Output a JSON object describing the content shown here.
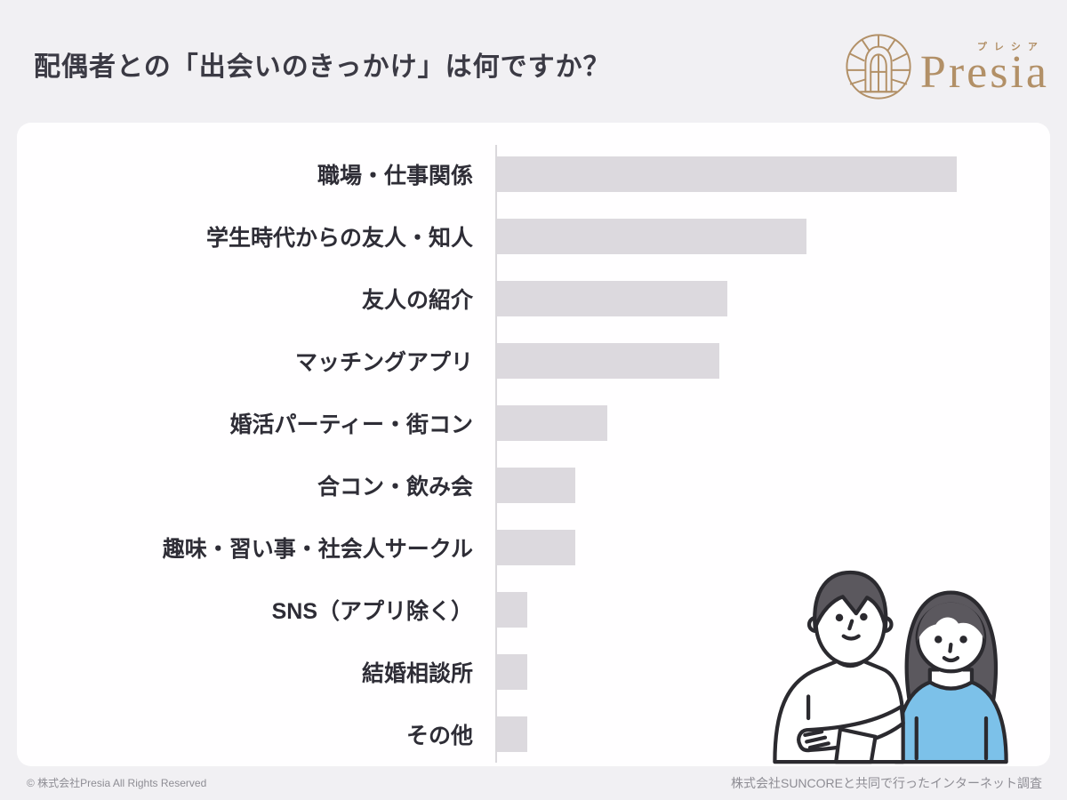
{
  "header": {
    "title": "配偶者との「出会いのきっかけ」は何ですか？",
    "logo": {
      "icon": "arched-window-icon",
      "furigana": "プレシア",
      "wordmark": "Presia"
    }
  },
  "chart_data": {
    "type": "bar",
    "orientation": "horizontal",
    "title": "配偶者との「出会いのきっかけ」は何ですか？",
    "categories": [
      "職場・仕事関係",
      "学生時代からの友人・知人",
      "友人の紹介",
      "マッチングアプリ",
      "婚活パーティー・街コン",
      "合コン・飲み会",
      "趣味・習い事・社会人サークル",
      "SNS（アプリ除く）",
      "結婚相談所",
      "その他"
    ],
    "values": [
      28.9,
      19.5,
      14.5,
      14.0,
      7.0,
      5.0,
      5.0,
      2.0,
      2.0,
      2.0
    ],
    "values_estimated_from_pixels": true,
    "data_labels_shown": false,
    "xlabel": "",
    "ylabel": "",
    "xlim": [
      0,
      32.5
    ],
    "grid": false,
    "legend": false,
    "bar_color": "#dcd9de"
  },
  "illustration": {
    "name": "couple-illustration"
  },
  "footer": {
    "copyright": "© 株式会社Presia All Rights Reserved",
    "survey_note": "株式会社SUNCOREと共同で行ったインターネット調査"
  },
  "colors": {
    "background": "#f1f0f3",
    "card": "#fffeff",
    "bar": "#dcd9de",
    "axis": "#dad8dc",
    "title_text": "#3b3a44",
    "label_text": "#2e2d36",
    "footer_text": "#8e8d94",
    "logo_gold": "#b29067",
    "illustration_blue": "#7cc1e9",
    "illustration_hair": "#5b585e",
    "illustration_outline": "#2b2a2f"
  }
}
